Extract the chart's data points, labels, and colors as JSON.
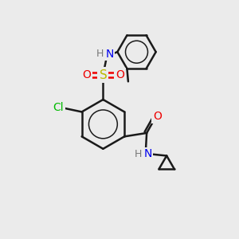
{
  "bg_color": "#ebebeb",
  "line_color": "#1a1a1a",
  "bond_width": 1.8,
  "atom_colors": {
    "N": "#0000ee",
    "O": "#ee0000",
    "S": "#bbbb00",
    "Cl": "#00bb00",
    "H": "#777777",
    "C": "#1a1a1a"
  },
  "font_size": 10,
  "fig_size": [
    3.0,
    3.0
  ],
  "dpi": 100
}
